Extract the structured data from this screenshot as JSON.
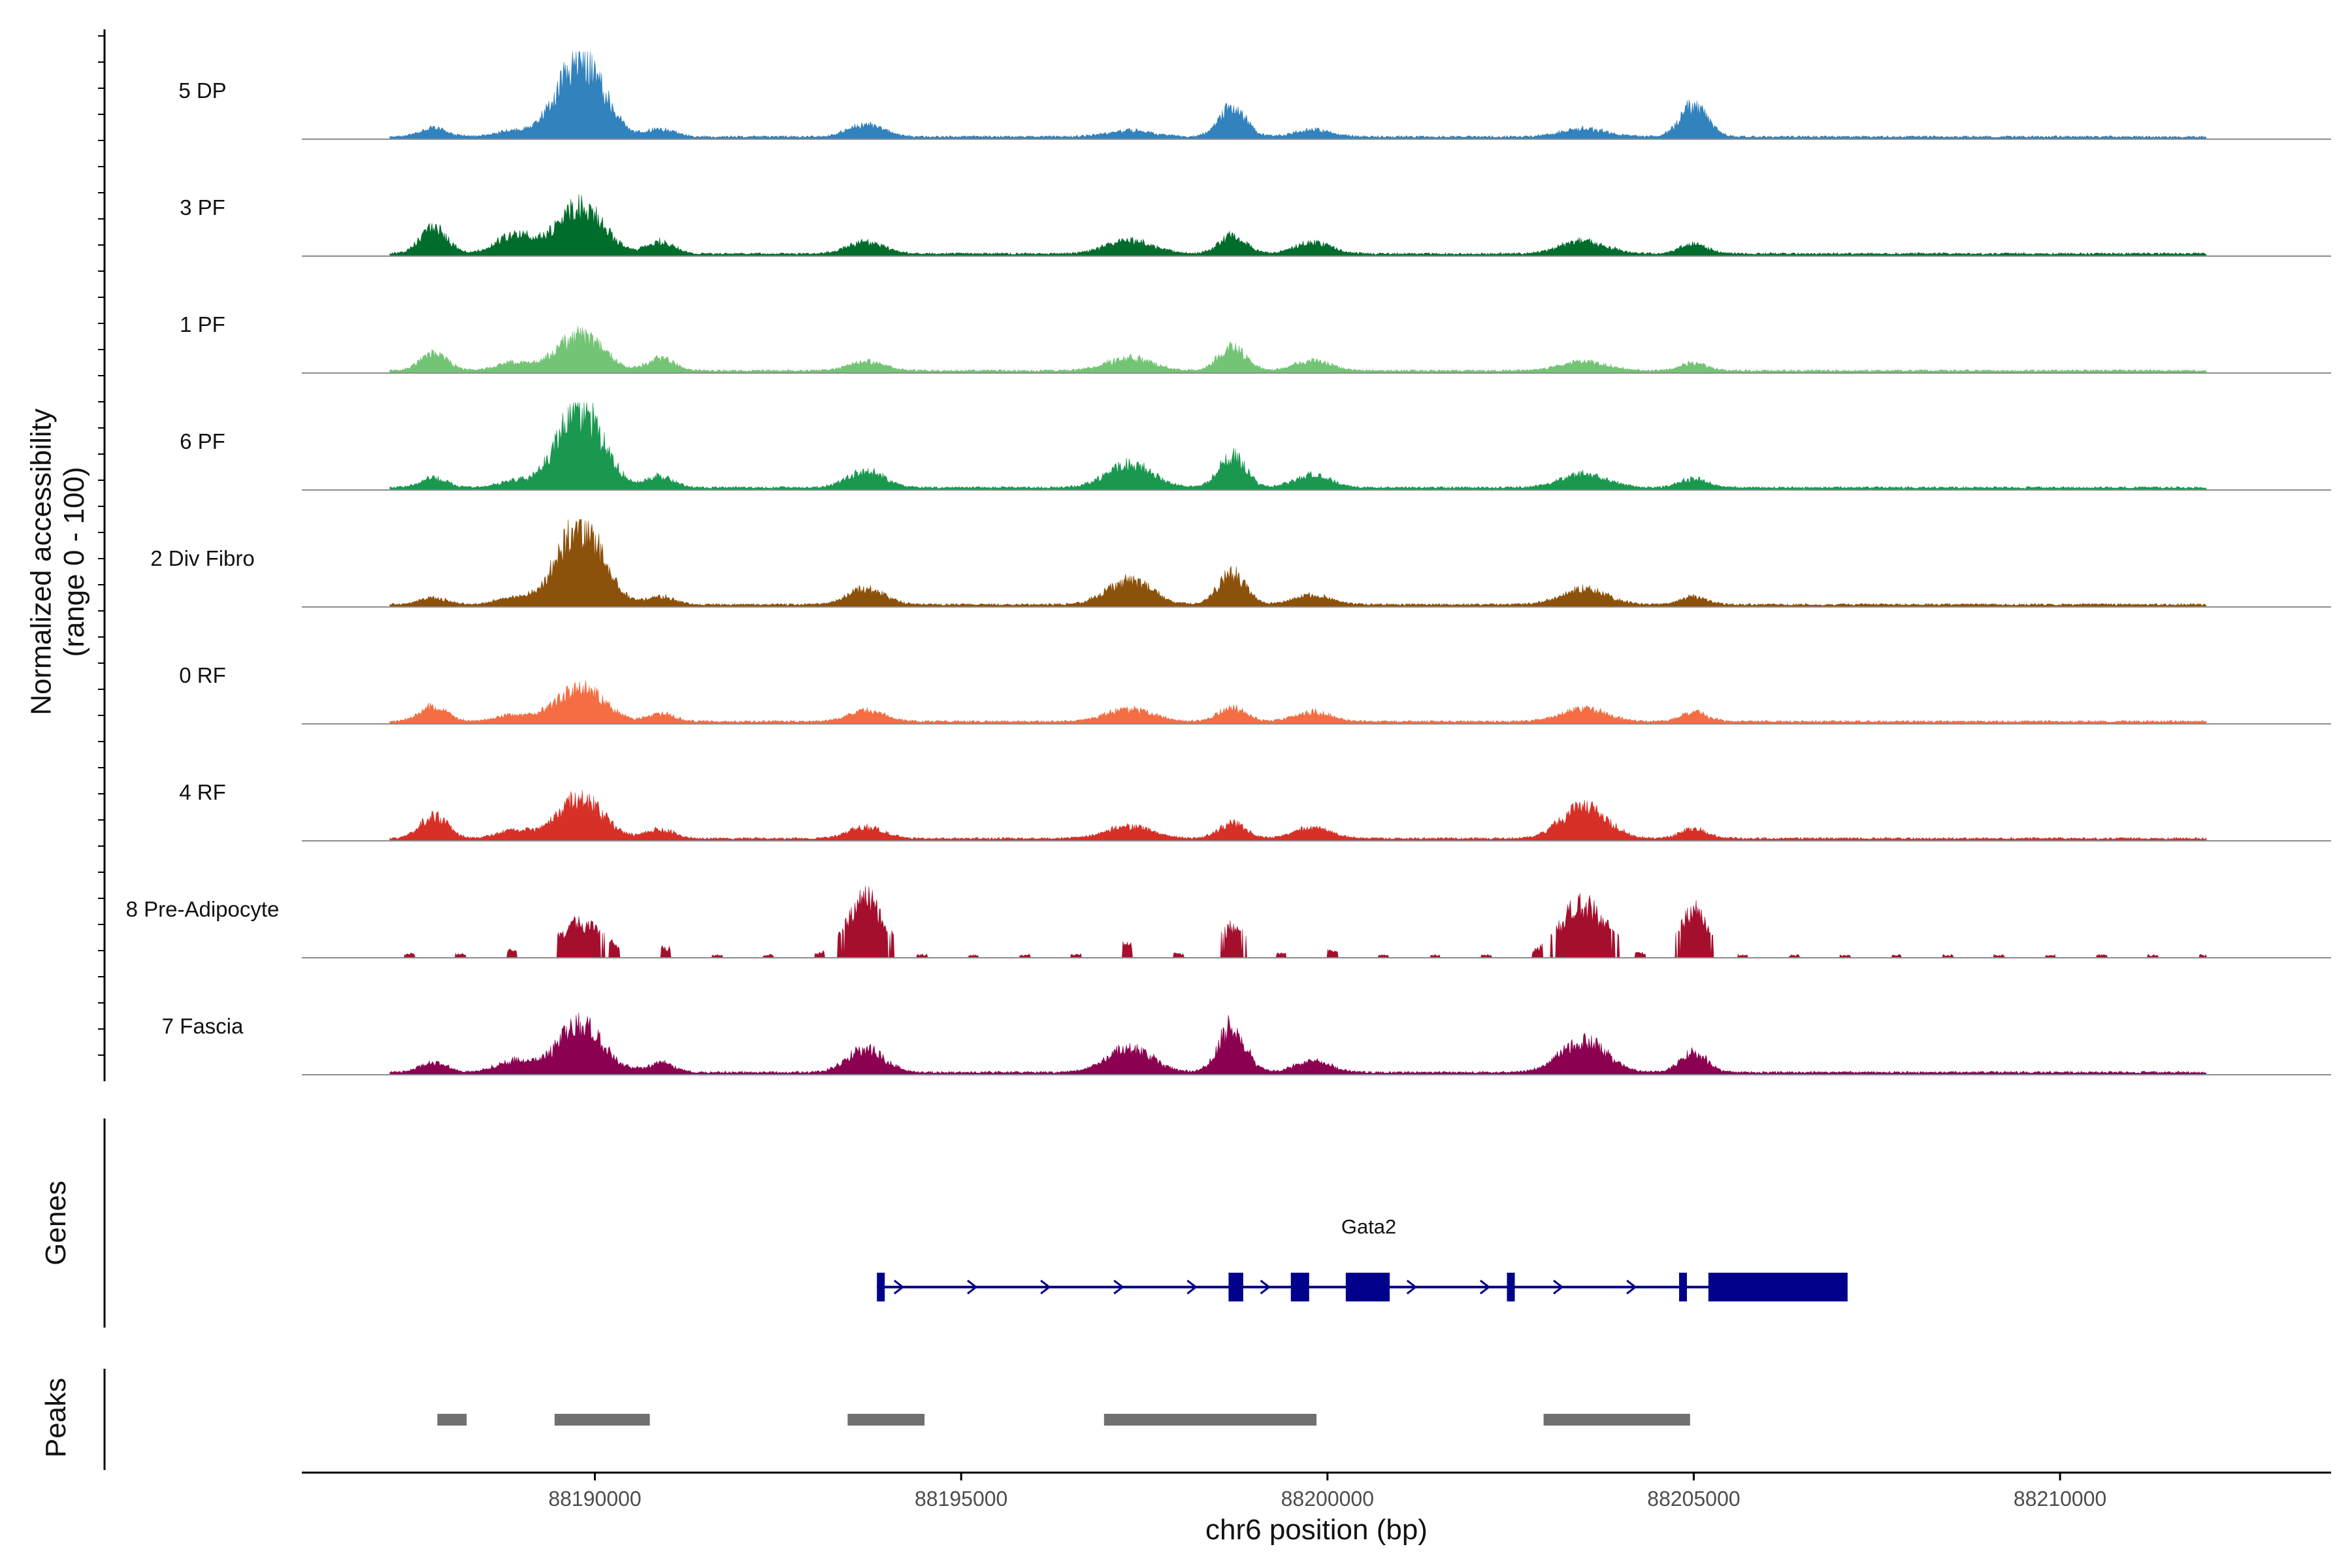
{
  "chart_data": {
    "type": "area",
    "title": "",
    "y_axis_title": [
      "Normalized accessibility",
      "(range 0 - 100)"
    ],
    "x_axis_title": "chr6 position (bp)",
    "xlim": [
      88186000,
      88213700
    ],
    "x_ticks": [
      88190000,
      88195000,
      88200000,
      88205000,
      88210000
    ],
    "x_tick_labels": [
      "88190000",
      "88195000",
      "88200000",
      "88205000",
      "88210000"
    ],
    "coverage_range": [
      0,
      100
    ],
    "coverage_peaks_x": [
      88187800,
      88188900,
      88189800,
      88190900,
      88193700,
      88197300,
      88198700,
      88199800,
      88203500,
      88205000
    ],
    "tracks": [
      {
        "name": "5 DP",
        "color": "#3182bd",
        "peaks": [
          11,
          7,
          100,
          10,
          15,
          8,
          36,
          9,
          10,
          40
        ]
      },
      {
        "name": "3 PF",
        "color": "#006d2c",
        "peaks": [
          33,
          24,
          60,
          15,
          15,
          18,
          22,
          14,
          16,
          12
        ]
      },
      {
        "name": "1 PF",
        "color": "#74c476",
        "peaks": [
          22,
          10,
          45,
          16,
          12,
          16,
          30,
          12,
          12,
          10
        ]
      },
      {
        "name": "6 PF",
        "color": "#1a9850",
        "peaks": [
          12,
          8,
          100,
          14,
          22,
          30,
          40,
          16,
          18,
          12
        ]
      },
      {
        "name": "2 Div Fibro",
        "color": "#8c510a",
        "peaks": [
          8,
          8,
          100,
          10,
          20,
          30,
          40,
          12,
          20,
          10
        ]
      },
      {
        "name": "0 RF",
        "color": "#f46d43",
        "peaks": [
          20,
          8,
          45,
          10,
          14,
          16,
          18,
          12,
          16,
          12
        ]
      },
      {
        "name": "4 RF",
        "color": "#d73027",
        "peaks": [
          30,
          10,
          50,
          12,
          14,
          16,
          20,
          14,
          40,
          12
        ]
      },
      {
        "name": "8 Pre-Adipocyte",
        "color": "#a50f2e",
        "peaks": [
          8,
          6,
          40,
          10,
          70,
          16,
          36,
          10,
          65,
          55
        ]
      },
      {
        "name": "7 Fascia",
        "color": "#8b0050",
        "peaks": [
          12,
          14,
          60,
          12,
          30,
          30,
          60,
          14,
          40,
          25
        ]
      }
    ],
    "genes_track_label": "Genes",
    "gene": {
      "name": "Gata2",
      "start": 88193850,
      "end": 88207100,
      "strand": "+",
      "color": "#00008b",
      "exons": [
        [
          88193850,
          88193950
        ],
        [
          88198650,
          88198850
        ],
        [
          88199500,
          88199750
        ],
        [
          88200250,
          88200850
        ],
        [
          88202450,
          88202550
        ],
        [
          88204800,
          88204900
        ],
        [
          88205200,
          88207100
        ]
      ]
    },
    "peaks_track_label": "Peaks",
    "peaks_color": "#707070",
    "peak_regions": [
      [
        88187850,
        88188250
      ],
      [
        88189450,
        88190750
      ],
      [
        88193450,
        88194500
      ],
      [
        88196950,
        88199850
      ],
      [
        88202950,
        88204950
      ]
    ]
  }
}
